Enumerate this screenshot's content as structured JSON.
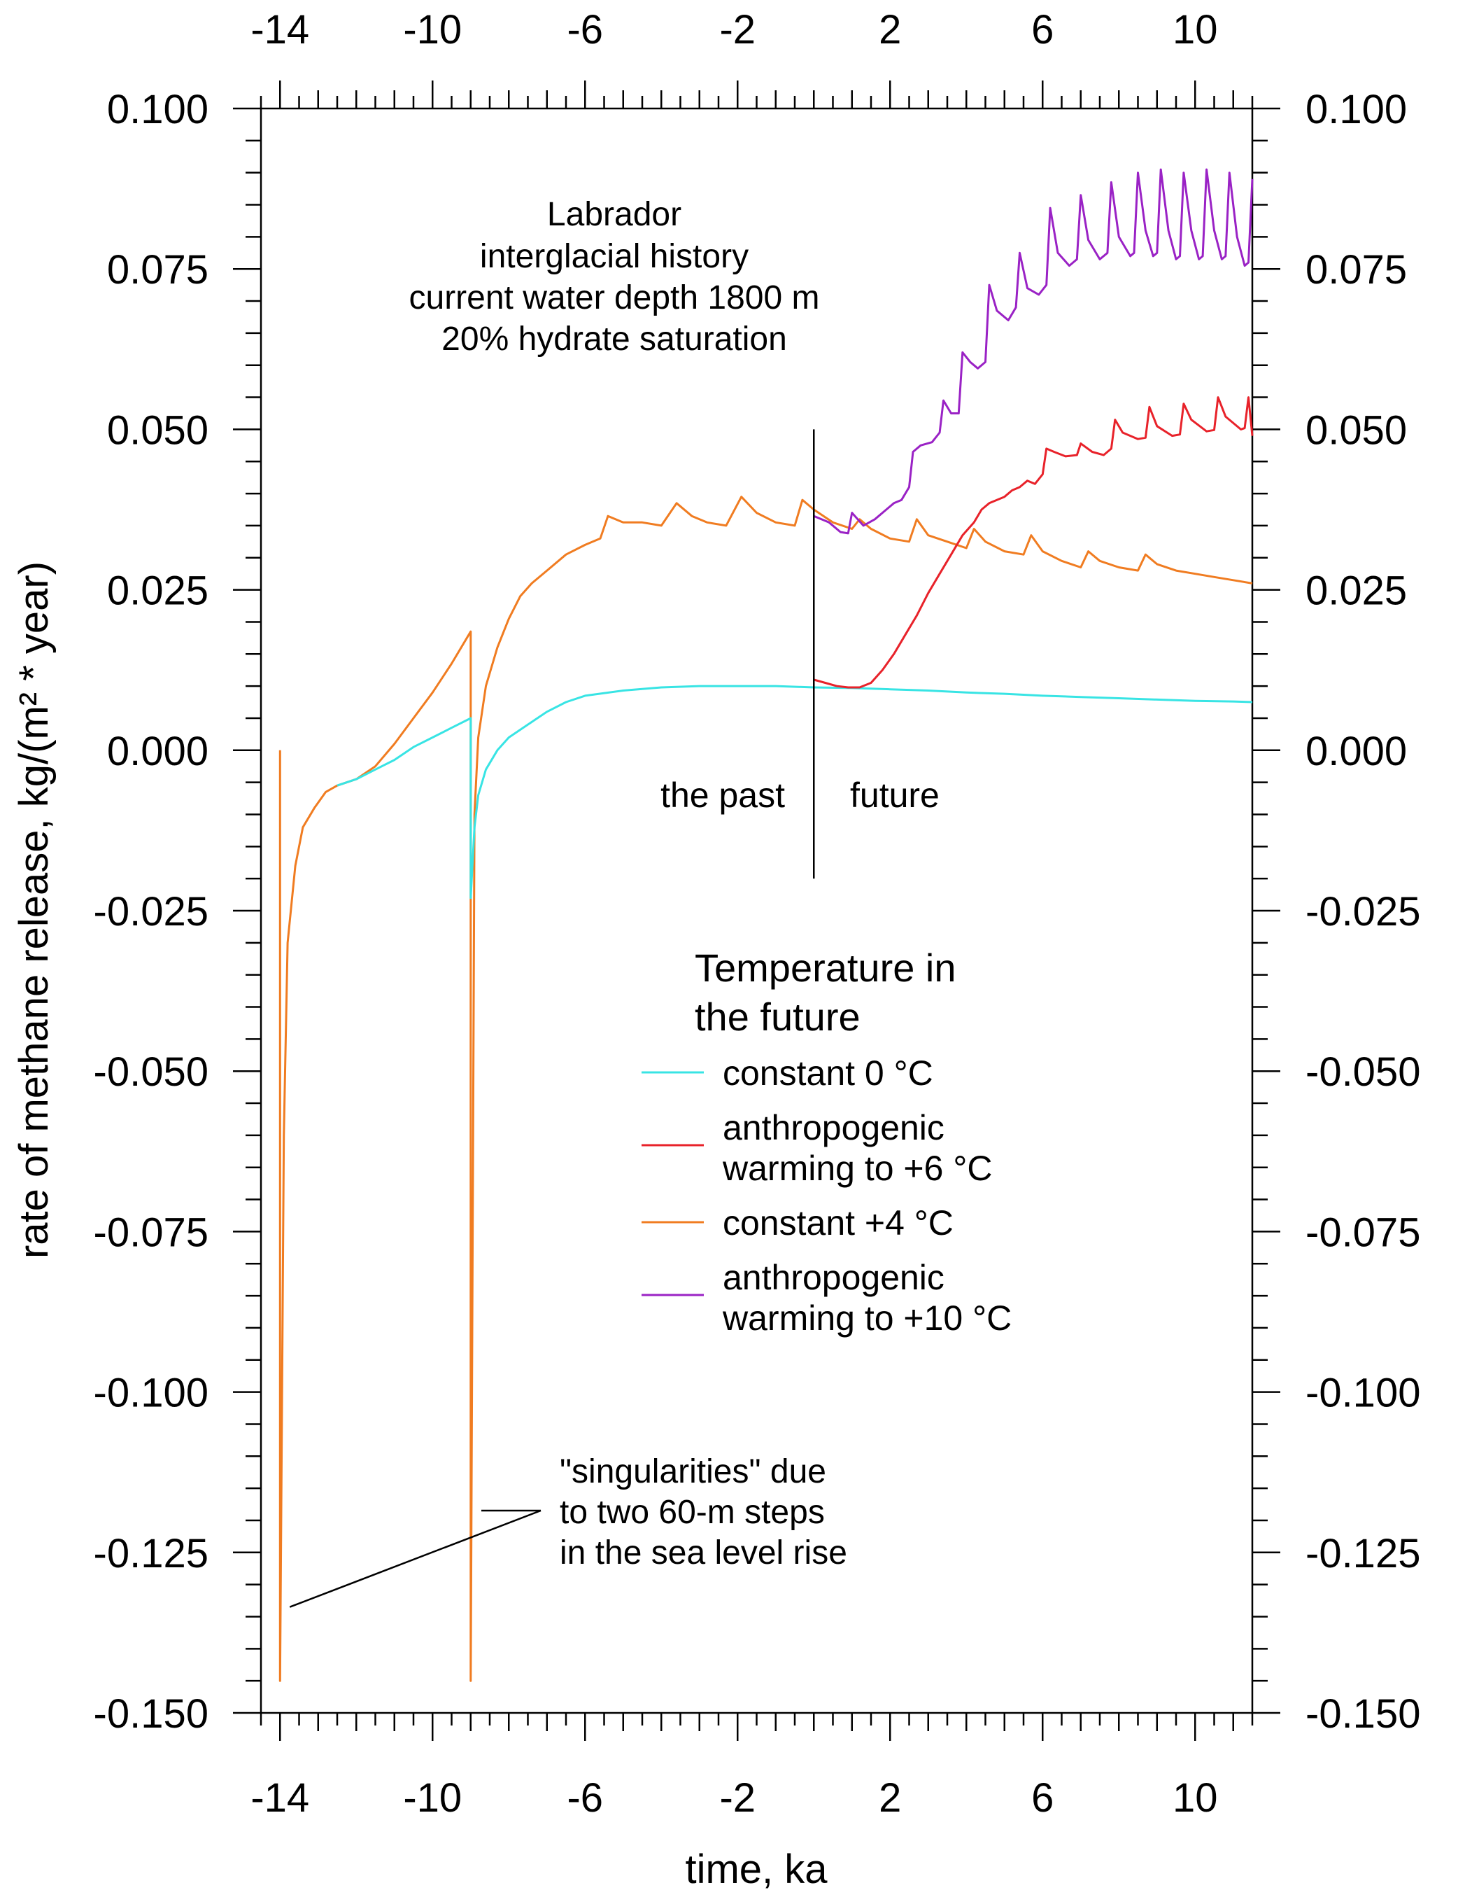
{
  "chart_data": {
    "type": "line",
    "title": "Labrador interglacial history",
    "annotation_lines": [
      "Labrador",
      "interglacial history",
      "current water depth 1800 m",
      "20% hydrate saturation"
    ],
    "xlabel": "time, ka",
    "ylabel": "rate of methane release, kg/(m² * year)",
    "xlim": [
      -14.5,
      11.5
    ],
    "ylim": [
      -0.15,
      0.1
    ],
    "x_ticks": [
      -14,
      -10,
      -6,
      -2,
      2,
      6,
      10
    ],
    "x_tick_labels": [
      "-14",
      "-10",
      "-6",
      "-2",
      "2",
      "6",
      "10"
    ],
    "y_ticks": [
      0.1,
      0.075,
      0.05,
      0.025,
      0.0,
      -0.025,
      -0.05,
      -0.075,
      -0.1,
      -0.125,
      -0.15
    ],
    "y_tick_labels": [
      "0.100",
      "0.075",
      "0.050",
      "0.025",
      "0.000",
      "-0.025",
      "-0.050",
      "-0.075",
      "-0.100",
      "-0.125",
      "-0.150"
    ],
    "past_label": "the past",
    "future_label": "future",
    "divider_x": 0,
    "divider_y_range": [
      -0.02,
      0.05
    ],
    "legend_title_lines": [
      "Temperature in",
      "the future"
    ],
    "singularity_note_lines": [
      "\"singularities\" due",
      "to two 60-m steps",
      "in the sea level rise"
    ],
    "singularity_x": [
      -14,
      -9
    ],
    "series": [
      {
        "name": "constant 0 °C",
        "legend_lines": [
          "constant 0 °C"
        ],
        "color": "#38e4e4",
        "points": [
          [
            -12.5,
            -0.0055
          ],
          [
            -12.0,
            -0.0045
          ],
          [
            -11.5,
            -0.003
          ],
          [
            -11.0,
            -0.0015
          ],
          [
            -10.5,
            0.0005
          ],
          [
            -10.0,
            0.002
          ],
          [
            -9.5,
            0.0035
          ],
          [
            -9.0,
            0.005
          ],
          [
            -9.0,
            -0.023
          ],
          [
            -8.9,
            -0.012
          ],
          [
            -8.8,
            -0.007
          ],
          [
            -8.6,
            -0.003
          ],
          [
            -8.3,
            0.0
          ],
          [
            -8.0,
            0.002
          ],
          [
            -7.5,
            0.004
          ],
          [
            -7.0,
            0.006
          ],
          [
            -6.5,
            0.0075
          ],
          [
            -6.0,
            0.0085
          ],
          [
            -5.0,
            0.0093
          ],
          [
            -4.0,
            0.0098
          ],
          [
            -3.0,
            0.01
          ],
          [
            -2.0,
            0.01
          ],
          [
            -1.0,
            0.01
          ],
          [
            0.0,
            0.0098
          ],
          [
            1.0,
            0.0097
          ],
          [
            2.0,
            0.0095
          ],
          [
            3.0,
            0.0093
          ],
          [
            4.0,
            0.009
          ],
          [
            5.0,
            0.0088
          ],
          [
            6.0,
            0.0085
          ],
          [
            7.0,
            0.0083
          ],
          [
            8.0,
            0.0081
          ],
          [
            9.0,
            0.0079
          ],
          [
            10.0,
            0.0077
          ],
          [
            11.0,
            0.0076
          ],
          [
            11.5,
            0.0075
          ]
        ]
      },
      {
        "name": "anthropogenic warming to +6 °C",
        "legend_lines": [
          "anthropogenic",
          "warming to +6 °C"
        ],
        "color": "#e8222a",
        "points": [
          [
            0.0,
            0.011
          ],
          [
            0.3,
            0.0105
          ],
          [
            0.6,
            0.01
          ],
          [
            0.9,
            0.0098
          ],
          [
            1.2,
            0.0098
          ],
          [
            1.5,
            0.0105
          ],
          [
            1.8,
            0.0125
          ],
          [
            2.1,
            0.015
          ],
          [
            2.4,
            0.018
          ],
          [
            2.7,
            0.021
          ],
          [
            3.0,
            0.0245
          ],
          [
            3.3,
            0.0275
          ],
          [
            3.6,
            0.0305
          ],
          [
            3.9,
            0.0335
          ],
          [
            4.2,
            0.0355
          ],
          [
            4.4,
            0.0375
          ],
          [
            4.6,
            0.0385
          ],
          [
            4.8,
            0.039
          ],
          [
            5.0,
            0.0395
          ],
          [
            5.2,
            0.0405
          ],
          [
            5.4,
            0.041
          ],
          [
            5.6,
            0.042
          ],
          [
            5.8,
            0.0415
          ],
          [
            6.0,
            0.043
          ],
          [
            6.1,
            0.047
          ],
          [
            6.3,
            0.0465
          ],
          [
            6.6,
            0.0458
          ],
          [
            6.9,
            0.046
          ],
          [
            7.0,
            0.0478
          ],
          [
            7.3,
            0.0465
          ],
          [
            7.6,
            0.046
          ],
          [
            7.8,
            0.047
          ],
          [
            7.9,
            0.0515
          ],
          [
            8.1,
            0.0495
          ],
          [
            8.5,
            0.0485
          ],
          [
            8.7,
            0.0487
          ],
          [
            8.8,
            0.0535
          ],
          [
            9.0,
            0.0505
          ],
          [
            9.4,
            0.049
          ],
          [
            9.6,
            0.0492
          ],
          [
            9.7,
            0.054
          ],
          [
            9.9,
            0.0515
          ],
          [
            10.3,
            0.0497
          ],
          [
            10.5,
            0.0499
          ],
          [
            10.6,
            0.055
          ],
          [
            10.8,
            0.052
          ],
          [
            11.2,
            0.05
          ],
          [
            11.3,
            0.0502
          ],
          [
            11.4,
            0.055
          ],
          [
            11.5,
            0.049
          ]
        ]
      },
      {
        "name": "constant +4 °C",
        "legend_lines": [
          "constant +4 °C"
        ],
        "color": "#f07c21",
        "points": [
          [
            -14.0,
            0.0
          ],
          [
            -14.0,
            -0.145
          ],
          [
            -13.9,
            -0.06
          ],
          [
            -13.8,
            -0.03
          ],
          [
            -13.6,
            -0.018
          ],
          [
            -13.4,
            -0.012
          ],
          [
            -13.1,
            -0.009
          ],
          [
            -12.8,
            -0.0065
          ],
          [
            -12.5,
            -0.0055
          ],
          [
            -12.0,
            -0.0045
          ],
          [
            -11.5,
            -0.0025
          ],
          [
            -11.0,
            0.001
          ],
          [
            -10.5,
            0.005
          ],
          [
            -10.0,
            0.009
          ],
          [
            -9.5,
            0.0135
          ],
          [
            -9.0,
            0.0185
          ],
          [
            -9.0,
            -0.145
          ],
          [
            -8.9,
            -0.01
          ],
          [
            -8.8,
            0.002
          ],
          [
            -8.6,
            0.01
          ],
          [
            -8.3,
            0.016
          ],
          [
            -8.0,
            0.0205
          ],
          [
            -7.7,
            0.024
          ],
          [
            -7.4,
            0.026
          ],
          [
            -7.0,
            0.028
          ],
          [
            -6.5,
            0.0305
          ],
          [
            -6.0,
            0.032
          ],
          [
            -5.6,
            0.033
          ],
          [
            -5.4,
            0.0365
          ],
          [
            -5.0,
            0.0355
          ],
          [
            -4.5,
            0.0355
          ],
          [
            -4.0,
            0.035
          ],
          [
            -3.6,
            0.0385
          ],
          [
            -3.2,
            0.0365
          ],
          [
            -2.8,
            0.0355
          ],
          [
            -2.3,
            0.035
          ],
          [
            -1.9,
            0.0395
          ],
          [
            -1.5,
            0.037
          ],
          [
            -1.0,
            0.0355
          ],
          [
            -0.5,
            0.035
          ],
          [
            -0.3,
            0.039
          ],
          [
            0.0,
            0.0375
          ],
          [
            0.5,
            0.0355
          ],
          [
            1.0,
            0.0345
          ],
          [
            1.2,
            0.036
          ],
          [
            1.5,
            0.0345
          ],
          [
            2.0,
            0.033
          ],
          [
            2.5,
            0.0325
          ],
          [
            2.7,
            0.036
          ],
          [
            3.0,
            0.0335
          ],
          [
            3.5,
            0.0325
          ],
          [
            4.0,
            0.0315
          ],
          [
            4.2,
            0.0345
          ],
          [
            4.5,
            0.0325
          ],
          [
            5.0,
            0.031
          ],
          [
            5.5,
            0.0305
          ],
          [
            5.7,
            0.0335
          ],
          [
            6.0,
            0.031
          ],
          [
            6.5,
            0.0295
          ],
          [
            7.0,
            0.0285
          ],
          [
            7.2,
            0.031
          ],
          [
            7.5,
            0.0295
          ],
          [
            8.0,
            0.0285
          ],
          [
            8.5,
            0.028
          ],
          [
            8.7,
            0.0305
          ],
          [
            9.0,
            0.029
          ],
          [
            9.5,
            0.028
          ],
          [
            10.0,
            0.0275
          ],
          [
            10.5,
            0.027
          ],
          [
            11.0,
            0.0265
          ],
          [
            11.5,
            0.026
          ]
        ]
      },
      {
        "name": "anthropogenic warming to +10 °C",
        "legend_lines": [
          "anthropogenic",
          "warming to +10 °C"
        ],
        "color": "#9a22c5",
        "points": [
          [
            0.0,
            0.0365
          ],
          [
            0.4,
            0.0355
          ],
          [
            0.7,
            0.034
          ],
          [
            0.9,
            0.0338
          ],
          [
            1.0,
            0.037
          ],
          [
            1.3,
            0.035
          ],
          [
            1.6,
            0.036
          ],
          [
            1.9,
            0.0375
          ],
          [
            2.1,
            0.0385
          ],
          [
            2.3,
            0.039
          ],
          [
            2.5,
            0.041
          ],
          [
            2.6,
            0.0465
          ],
          [
            2.8,
            0.0475
          ],
          [
            3.1,
            0.048
          ],
          [
            3.3,
            0.0495
          ],
          [
            3.4,
            0.0545
          ],
          [
            3.6,
            0.0525
          ],
          [
            3.8,
            0.0525
          ],
          [
            3.9,
            0.062
          ],
          [
            4.1,
            0.0605
          ],
          [
            4.3,
            0.0595
          ],
          [
            4.5,
            0.0605
          ],
          [
            4.6,
            0.0725
          ],
          [
            4.8,
            0.0685
          ],
          [
            5.1,
            0.067
          ],
          [
            5.3,
            0.069
          ],
          [
            5.4,
            0.0775
          ],
          [
            5.6,
            0.072
          ],
          [
            5.9,
            0.071
          ],
          [
            6.1,
            0.0725
          ],
          [
            6.2,
            0.0845
          ],
          [
            6.4,
            0.0775
          ],
          [
            6.7,
            0.0755
          ],
          [
            6.9,
            0.0765
          ],
          [
            7.0,
            0.0865
          ],
          [
            7.2,
            0.0795
          ],
          [
            7.5,
            0.0765
          ],
          [
            7.7,
            0.0775
          ],
          [
            7.8,
            0.0885
          ],
          [
            8.0,
            0.08
          ],
          [
            8.3,
            0.077
          ],
          [
            8.4,
            0.0775
          ],
          [
            8.5,
            0.09
          ],
          [
            8.7,
            0.081
          ],
          [
            8.9,
            0.077
          ],
          [
            9.0,
            0.0775
          ],
          [
            9.1,
            0.0905
          ],
          [
            9.3,
            0.081
          ],
          [
            9.5,
            0.0765
          ],
          [
            9.6,
            0.077
          ],
          [
            9.7,
            0.09
          ],
          [
            9.9,
            0.081
          ],
          [
            10.1,
            0.0765
          ],
          [
            10.2,
            0.077
          ],
          [
            10.3,
            0.0905
          ],
          [
            10.5,
            0.081
          ],
          [
            10.7,
            0.0765
          ],
          [
            10.8,
            0.077
          ],
          [
            10.9,
            0.09
          ],
          [
            11.1,
            0.08
          ],
          [
            11.3,
            0.0755
          ],
          [
            11.4,
            0.076
          ],
          [
            11.5,
            0.089
          ]
        ]
      }
    ]
  }
}
